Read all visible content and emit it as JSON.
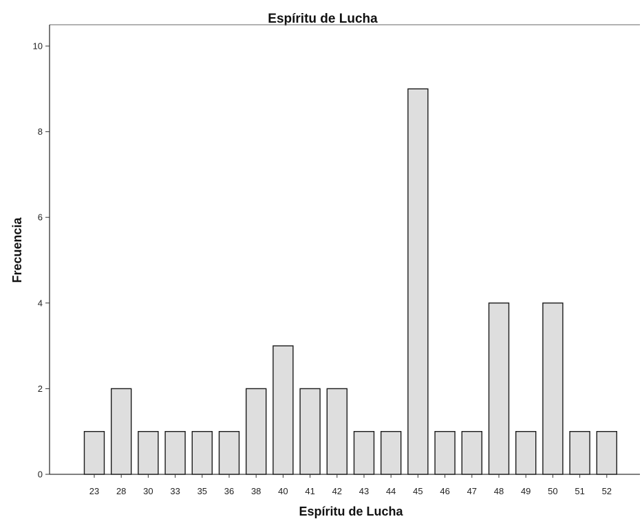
{
  "chart_data": {
    "type": "bar",
    "title": "Espíritu de Lucha",
    "xlabel": "Espíritu de Lucha",
    "ylabel": "Frecuencia",
    "categories": [
      "23",
      "28",
      "30",
      "33",
      "35",
      "36",
      "38",
      "40",
      "41",
      "42",
      "43",
      "44",
      "45",
      "46",
      "47",
      "48",
      "49",
      "50",
      "51",
      "52"
    ],
    "values": [
      1,
      2,
      1,
      1,
      1,
      1,
      2,
      3,
      2,
      2,
      1,
      1,
      9,
      1,
      1,
      4,
      1,
      4,
      1,
      1
    ],
    "ylim": [
      0,
      10
    ],
    "yticks": [
      "0",
      "2",
      "4",
      "6",
      "8",
      "10"
    ],
    "grid": false,
    "colors": {
      "bar_fill": "#dedede",
      "bar_stroke": "#1a1a1a",
      "background": "#ffffff"
    }
  }
}
